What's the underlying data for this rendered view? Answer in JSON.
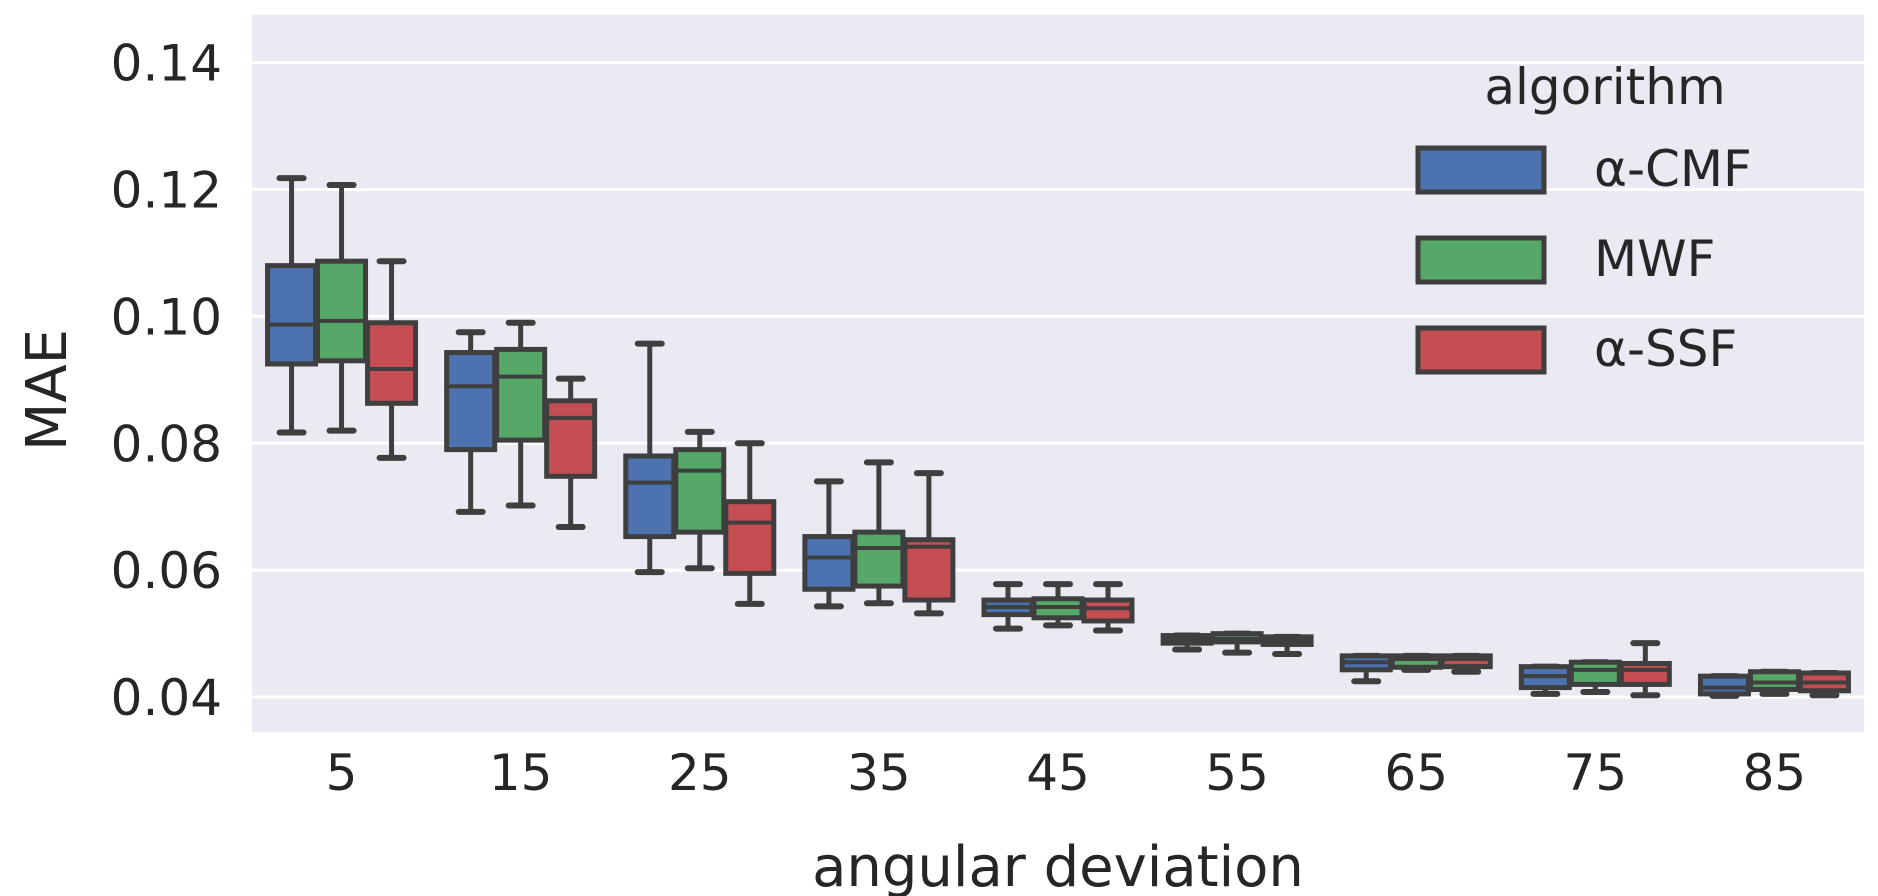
{
  "chart_data": {
    "type": "box",
    "xlabel": "angular deviation",
    "ylabel": "MAE",
    "categories": [
      "5",
      "15",
      "25",
      "35",
      "45",
      "55",
      "65",
      "75",
      "85"
    ],
    "yticks": [
      "0.04",
      "0.06",
      "0.08",
      "0.10",
      "0.12",
      "0.14"
    ],
    "ytick_values": [
      0.04,
      0.06,
      0.08,
      0.1,
      0.12,
      0.14
    ],
    "ylim": [
      0.0345,
      0.1475
    ],
    "grid": true,
    "legend": {
      "title": "algorithm",
      "position": "top-right"
    },
    "series": [
      {
        "name": "α-CMF",
        "color": "#4C72B0",
        "boxes": [
          {
            "whislo": 0.0817,
            "q1": 0.0925,
            "med": 0.0987,
            "q3": 0.108,
            "whishi": 0.1218
          },
          {
            "whislo": 0.0692,
            "q1": 0.079,
            "med": 0.089,
            "q3": 0.0943,
            "whishi": 0.0975
          },
          {
            "whislo": 0.0597,
            "q1": 0.0653,
            "med": 0.0738,
            "q3": 0.078,
            "whishi": 0.0957
          },
          {
            "whislo": 0.0543,
            "q1": 0.057,
            "med": 0.062,
            "q3": 0.0653,
            "whishi": 0.074
          },
          {
            "whislo": 0.0508,
            "q1": 0.053,
            "med": 0.0542,
            "q3": 0.0553,
            "whishi": 0.0578
          },
          {
            "whislo": 0.0475,
            "q1": 0.0485,
            "med": 0.049,
            "q3": 0.0497,
            "whishi": 0.0497
          },
          {
            "whislo": 0.0425,
            "q1": 0.0443,
            "med": 0.0455,
            "q3": 0.0465,
            "whishi": 0.0465
          },
          {
            "whislo": 0.0405,
            "q1": 0.0415,
            "med": 0.0433,
            "q3": 0.0448,
            "whishi": 0.0448
          },
          {
            "whislo": 0.0402,
            "q1": 0.0405,
            "med": 0.0415,
            "q3": 0.0433,
            "whishi": 0.0433
          }
        ]
      },
      {
        "name": "MWF",
        "color": "#55A868",
        "boxes": [
          {
            "whislo": 0.082,
            "q1": 0.093,
            "med": 0.0993,
            "q3": 0.1087,
            "whishi": 0.1207
          },
          {
            "whislo": 0.0702,
            "q1": 0.0805,
            "med": 0.0905,
            "q3": 0.0948,
            "whishi": 0.099
          },
          {
            "whislo": 0.0603,
            "q1": 0.066,
            "med": 0.0757,
            "q3": 0.079,
            "whishi": 0.0818
          },
          {
            "whislo": 0.0548,
            "q1": 0.0575,
            "med": 0.0635,
            "q3": 0.066,
            "whishi": 0.077
          },
          {
            "whislo": 0.0513,
            "q1": 0.0525,
            "med": 0.0542,
            "q3": 0.0555,
            "whishi": 0.0578
          },
          {
            "whislo": 0.047,
            "q1": 0.0487,
            "med": 0.0492,
            "q3": 0.05,
            "whishi": 0.05
          },
          {
            "whislo": 0.0443,
            "q1": 0.0447,
            "med": 0.046,
            "q3": 0.0465,
            "whishi": 0.0465
          },
          {
            "whislo": 0.0408,
            "q1": 0.042,
            "med": 0.0443,
            "q3": 0.0455,
            "whishi": 0.0455
          },
          {
            "whislo": 0.0405,
            "q1": 0.0412,
            "med": 0.0423,
            "q3": 0.044,
            "whishi": 0.044
          }
        ]
      },
      {
        "name": "α-SSF",
        "color": "#C44E52",
        "boxes": [
          {
            "whislo": 0.0777,
            "q1": 0.0863,
            "med": 0.0917,
            "q3": 0.099,
            "whishi": 0.1087
          },
          {
            "whislo": 0.0668,
            "q1": 0.0748,
            "med": 0.084,
            "q3": 0.0867,
            "whishi": 0.0902
          },
          {
            "whislo": 0.0547,
            "q1": 0.0595,
            "med": 0.0675,
            "q3": 0.0708,
            "whishi": 0.08
          },
          {
            "whislo": 0.0532,
            "q1": 0.0553,
            "med": 0.0637,
            "q3": 0.0648,
            "whishi": 0.0753
          },
          {
            "whislo": 0.0505,
            "q1": 0.052,
            "med": 0.054,
            "q3": 0.0553,
            "whishi": 0.0578
          },
          {
            "whislo": 0.0468,
            "q1": 0.0483,
            "med": 0.049,
            "q3": 0.0495,
            "whishi": 0.0495
          },
          {
            "whislo": 0.044,
            "q1": 0.0448,
            "med": 0.046,
            "q3": 0.0465,
            "whishi": 0.0465
          },
          {
            "whislo": 0.0403,
            "q1": 0.042,
            "med": 0.0443,
            "q3": 0.0453,
            "whishi": 0.0485
          },
          {
            "whislo": 0.0403,
            "q1": 0.041,
            "med": 0.0423,
            "q3": 0.0438,
            "whishi": 0.0438
          }
        ]
      }
    ]
  }
}
